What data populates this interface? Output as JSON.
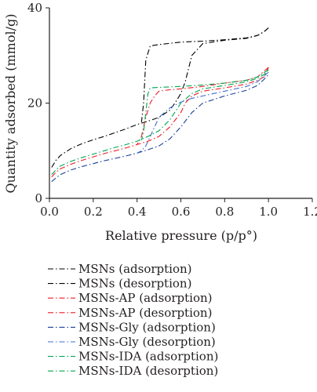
{
  "chart_data": {
    "type": "line",
    "title": "",
    "xlabel": "Relative pressure (p/p°)",
    "ylabel": "Quantity adsorbed (mmol/g)",
    "xlim": [
      0.0,
      1.2
    ],
    "ylim": [
      0,
      40
    ],
    "xticks": [
      "0.0",
      "0.2",
      "0.4",
      "0.6",
      "0.8",
      "1.0",
      "1.2"
    ],
    "yticks": [
      "0",
      "20",
      "40"
    ],
    "grid": false,
    "legend_position": "bottom",
    "series": [
      {
        "name": "MSNs (adsorption)",
        "color": "#000000",
        "x": [
          0.01,
          0.03,
          0.05,
          0.1,
          0.15,
          0.2,
          0.25,
          0.3,
          0.35,
          0.4,
          0.45,
          0.5,
          0.55,
          0.58,
          0.6,
          0.62,
          0.65,
          0.7,
          0.8,
          0.9,
          0.95,
          0.98,
          1.0
        ],
        "y": [
          6.5,
          8,
          9,
          10.5,
          11.5,
          12.3,
          13,
          13.8,
          14.6,
          15.5,
          16.2,
          17,
          18.5,
          20.5,
          22,
          24.5,
          30,
          32.5,
          33.2,
          33.6,
          34.2,
          35,
          35.8
        ]
      },
      {
        "name": "MSNs (desorption)",
        "color": "#000000",
        "x": [
          1.0,
          0.98,
          0.95,
          0.9,
          0.8,
          0.7,
          0.6,
          0.5,
          0.46,
          0.44,
          0.43,
          0.42
        ],
        "y": [
          35.8,
          35,
          34.2,
          33.7,
          33.3,
          33,
          32.8,
          32.3,
          32,
          29,
          20,
          16
        ]
      },
      {
        "name": "MSNs-AP (adsorption)",
        "color": "#ed1c24",
        "x": [
          0.01,
          0.03,
          0.05,
          0.1,
          0.15,
          0.2,
          0.25,
          0.3,
          0.35,
          0.4,
          0.45,
          0.5,
          0.55,
          0.6,
          0.62,
          0.65,
          0.7,
          0.8,
          0.9,
          0.95,
          0.98,
          1.0
        ],
        "y": [
          4.5,
          5.5,
          6.2,
          7.2,
          8,
          8.7,
          9.4,
          10,
          10.6,
          11.3,
          12,
          13,
          15,
          18,
          20,
          21.5,
          22.5,
          23.2,
          24,
          24.8,
          25.5,
          27.5
        ]
      },
      {
        "name": "MSNs-AP (desorption)",
        "color": "#ed1c24",
        "x": [
          1.0,
          0.95,
          0.9,
          0.8,
          0.7,
          0.6,
          0.55,
          0.5,
          0.48,
          0.46,
          0.44,
          0.42,
          0.4
        ],
        "y": [
          27.5,
          25.5,
          24.8,
          24.2,
          23.5,
          23,
          22.8,
          22.5,
          21.5,
          20,
          17,
          13,
          11.3
        ]
      },
      {
        "name": "MSNs-Gly (adsorption)",
        "color": "#1c3f94",
        "x": [
          0.01,
          0.03,
          0.05,
          0.1,
          0.15,
          0.2,
          0.25,
          0.3,
          0.35,
          0.4,
          0.45,
          0.5,
          0.55,
          0.6,
          0.65,
          0.7,
          0.8,
          0.9,
          0.95,
          0.98,
          1.0
        ],
        "y": [
          3.5,
          4.3,
          5,
          6,
          6.7,
          7.3,
          7.9,
          8.4,
          8.9,
          9.5,
          10.2,
          11,
          12.5,
          15,
          18,
          20,
          21.5,
          22.7,
          23.7,
          25,
          26
        ]
      },
      {
        "name": "MSNs-Gly (desorption)",
        "color": "#3a6fd0",
        "x": [
          1.0,
          0.95,
          0.9,
          0.8,
          0.7,
          0.65,
          0.6,
          0.55,
          0.5,
          0.48,
          0.46,
          0.44,
          0.42,
          0.4
        ],
        "y": [
          26.5,
          24.5,
          23.5,
          22.5,
          21.5,
          21,
          20.2,
          19,
          17,
          15,
          13,
          11,
          10,
          9.5
        ]
      },
      {
        "name": "MSNs-IDA (adsorption)",
        "color": "#00a651",
        "x": [
          0.01,
          0.03,
          0.05,
          0.1,
          0.15,
          0.2,
          0.25,
          0.3,
          0.35,
          0.4,
          0.45,
          0.5,
          0.55,
          0.6,
          0.65,
          0.7,
          0.8,
          0.9,
          0.95,
          0.98,
          1.0
        ],
        "y": [
          5,
          6,
          6.8,
          7.8,
          8.6,
          9.3,
          10,
          10.7,
          11.3,
          12,
          13,
          14.2,
          16.5,
          20,
          22,
          23,
          23.7,
          24.5,
          25.2,
          26,
          27
        ]
      },
      {
        "name": "MSNs-IDA (desorption)",
        "color": "#00a651",
        "x": [
          1.0,
          0.95,
          0.9,
          0.8,
          0.7,
          0.6,
          0.5,
          0.46,
          0.45,
          0.44,
          0.43,
          0.42
        ],
        "y": [
          27,
          25.5,
          24.8,
          24.2,
          23.8,
          23.5,
          23.3,
          23.2,
          22,
          18,
          14,
          12.2
        ]
      }
    ]
  }
}
